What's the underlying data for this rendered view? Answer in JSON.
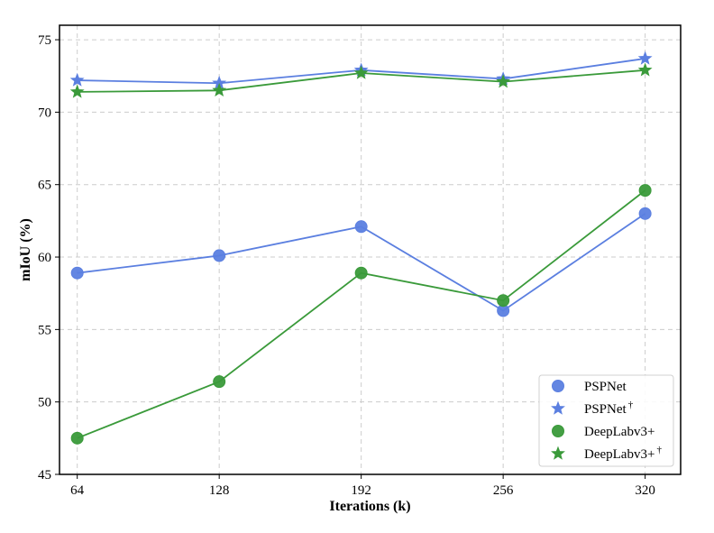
{
  "chart_data": {
    "type": "line",
    "title": "",
    "xlabel": "Iterations (k)",
    "ylabel": "mIoU (%)",
    "categories": [
      "64",
      "128",
      "192",
      "256",
      "320"
    ],
    "x": [
      64,
      128,
      192,
      256,
      320
    ],
    "xlim": [
      56,
      336
    ],
    "ylim": [
      45,
      76
    ],
    "yticks": [
      45,
      50,
      55,
      60,
      65,
      70,
      75
    ],
    "grid": true,
    "legend": {
      "position": "bottom-right",
      "entries": [
        {
          "label": "PSPNet",
          "marker": "circle",
          "color": "#5b7fe0"
        },
        {
          "label": "PSPNet",
          "sup": "†",
          "marker": "star",
          "color": "#5b7fe0"
        },
        {
          "label": "DeepLabv3+",
          "marker": "circle",
          "color": "#3a9a3a"
        },
        {
          "label": "DeepLabv3+",
          "sup": "†",
          "marker": "star",
          "color": "#3a9a3a"
        }
      ]
    },
    "series": [
      {
        "marker": "circle",
        "color": "#5b7fe0",
        "values": [
          58.9,
          60.1,
          62.1,
          56.3,
          63.0
        ]
      },
      {
        "marker": "star",
        "color": "#5b7fe0",
        "values": [
          72.2,
          72.0,
          72.9,
          72.3,
          73.7
        ]
      },
      {
        "marker": "circle",
        "color": "#3a9a3a",
        "values": [
          47.5,
          51.4,
          58.9,
          57.0,
          64.6
        ]
      },
      {
        "marker": "star",
        "color": "#3a9a3a",
        "values": [
          71.4,
          71.5,
          72.7,
          72.1,
          72.9
        ]
      }
    ]
  }
}
